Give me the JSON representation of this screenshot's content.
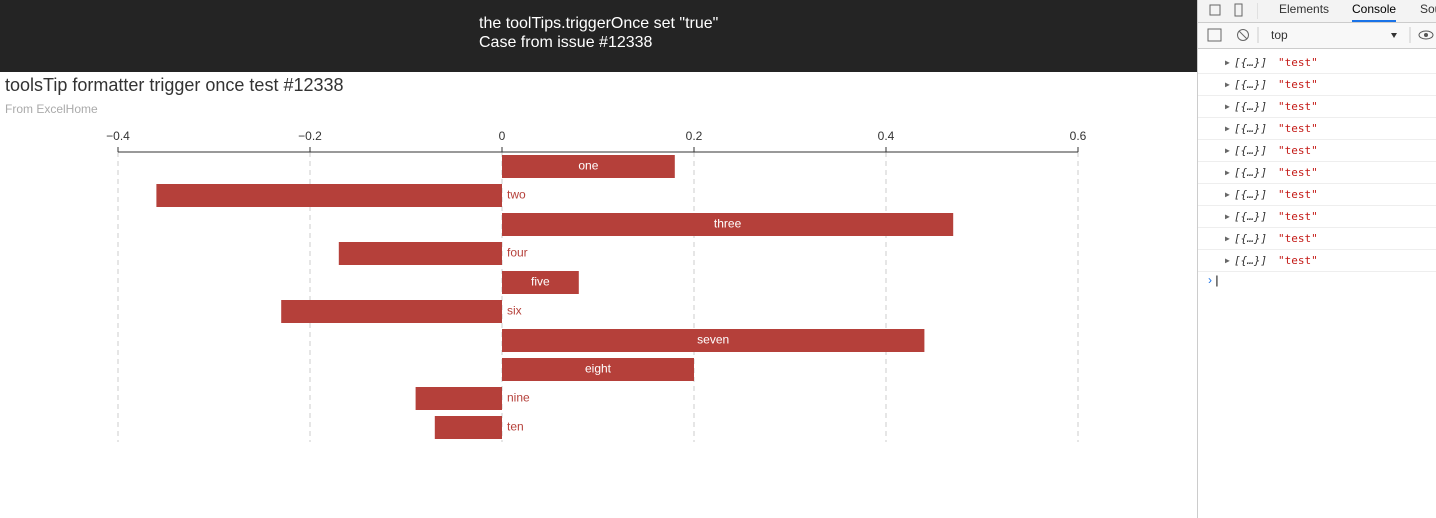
{
  "header": {
    "line1": "the toolTips.triggerOnce set \"true\"",
    "line2": "Case from issue #12338"
  },
  "chart_data": {
    "type": "hbar",
    "title": "toolsTip formatter trigger once test #12338",
    "subtitle": "From ExcelHome",
    "categories": [
      "one",
      "two",
      "three",
      "four",
      "five",
      "six",
      "seven",
      "eight",
      "nine",
      "ten"
    ],
    "values": [
      0.18,
      -0.36,
      0.47,
      -0.17,
      0.08,
      -0.23,
      0.44,
      0.2,
      -0.09,
      -0.07
    ],
    "color": "#b5403a",
    "xlim": [
      -0.4,
      0.6
    ],
    "xticks": [
      {
        "value": -0.4,
        "label": "−0.4"
      },
      {
        "value": -0.2,
        "label": "−0.2"
      },
      0,
      0.2,
      0.4,
      0.6
    ],
    "grid": true
  },
  "devtools": {
    "tabs": [
      "Elements",
      "Console",
      "Sou"
    ],
    "active_tab": 1,
    "context": "top",
    "logs": [
      [
        "[{…}]",
        "\"test\""
      ],
      [
        "[{…}]",
        "\"test\""
      ],
      [
        "[{…}]",
        "\"test\""
      ],
      [
        "[{…}]",
        "\"test\""
      ],
      [
        "[{…}]",
        "\"test\""
      ],
      [
        "[{…}]",
        "\"test\""
      ],
      [
        "[{…}]",
        "\"test\""
      ],
      [
        "[{…}]",
        "\"test\""
      ],
      [
        "[{…}]",
        "\"test\""
      ],
      [
        "[{…}]",
        "\"test\""
      ]
    ]
  }
}
